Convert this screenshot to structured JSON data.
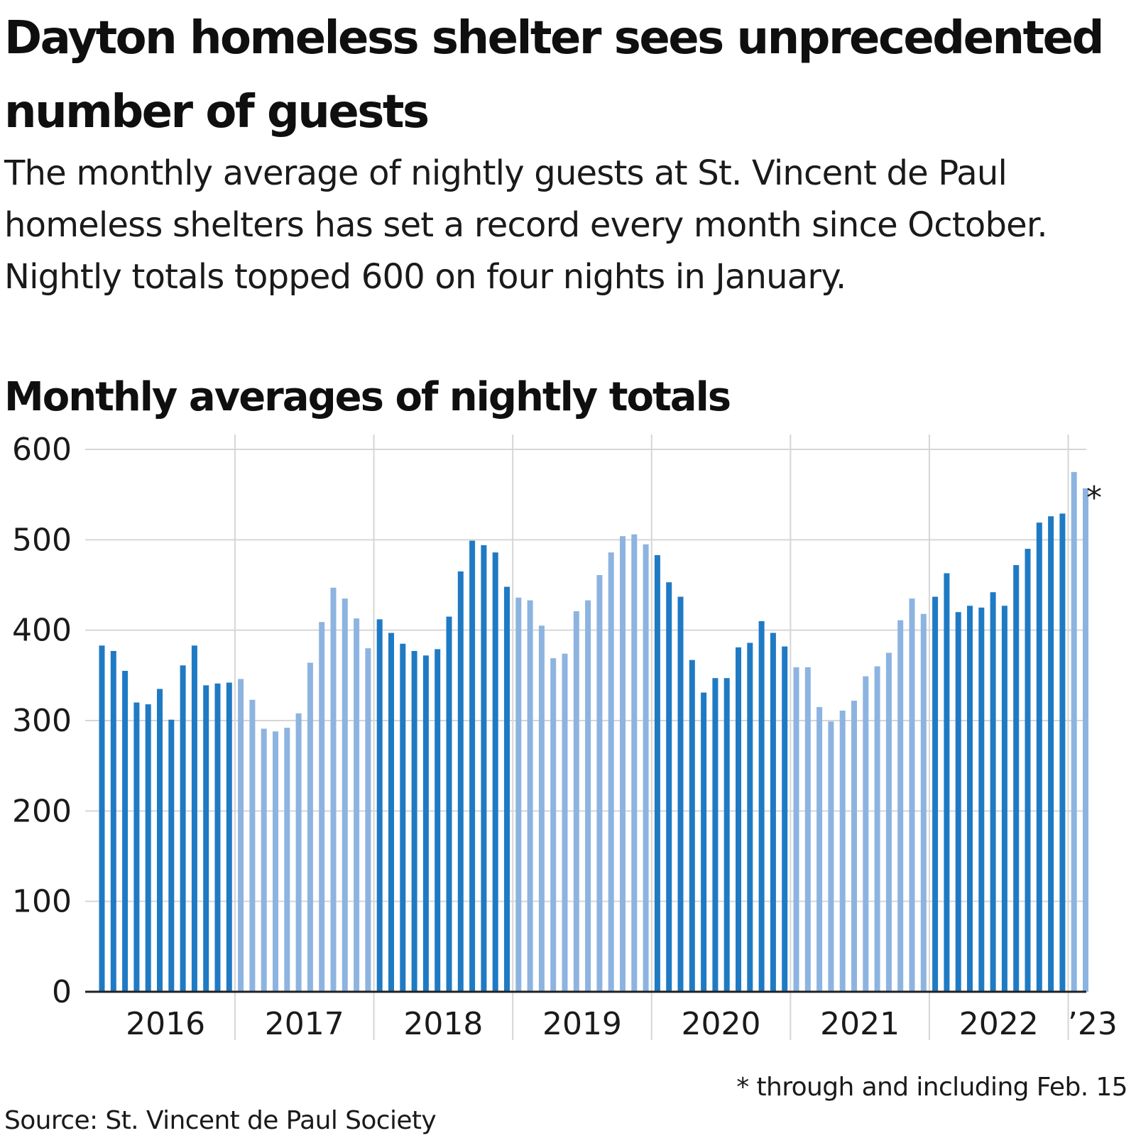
{
  "headline": "Dayton homeless shelter sees unprecedented number of guests",
  "subtitle": "The monthly average of nightly guests at St. Vincent de Paul homeless shelters has set a record every month since October. Nightly totals topped 600 on four nights in January.",
  "source": "Source: St. Vincent de Paul Society",
  "footnote": "* through and including Feb. 15",
  "colors": {
    "dark_bar": "#1f7ac4",
    "light_bar": "#8db4e0",
    "grid": "#d6d6d6",
    "axis": "#222222"
  },
  "chart_data": {
    "type": "bar",
    "title": "Monthly averages of nightly totals",
    "xlabel": "",
    "ylabel": "",
    "ylim": [
      0,
      600
    ],
    "yticks": [
      0,
      100,
      200,
      300,
      400,
      500,
      600
    ],
    "grid": true,
    "year_labels": [
      "2016",
      "2017",
      "2018",
      "2019",
      "2020",
      "2021",
      "2022",
      "’23"
    ],
    "annotation": {
      "text": "*",
      "category": "Feb 2023"
    },
    "categories": [
      "Jan 2016",
      "Feb 2016",
      "Mar 2016",
      "Apr 2016",
      "May 2016",
      "Jun 2016",
      "Jul 2016",
      "Aug 2016",
      "Sep 2016",
      "Oct 2016",
      "Nov 2016",
      "Dec 2016",
      "Jan 2017",
      "Feb 2017",
      "Mar 2017",
      "Apr 2017",
      "May 2017",
      "Jun 2017",
      "Jul 2017",
      "Aug 2017",
      "Sep 2017",
      "Oct 2017",
      "Nov 2017",
      "Dec 2017",
      "Jan 2018",
      "Feb 2018",
      "Mar 2018",
      "Apr 2018",
      "May 2018",
      "Jun 2018",
      "Jul 2018",
      "Aug 2018",
      "Sep 2018",
      "Oct 2018",
      "Nov 2018",
      "Dec 2018",
      "Jan 2019",
      "Feb 2019",
      "Mar 2019",
      "Apr 2019",
      "May 2019",
      "Jun 2019",
      "Jul 2019",
      "Aug 2019",
      "Sep 2019",
      "Oct 2019",
      "Nov 2019",
      "Dec 2019",
      "Jan 2020",
      "Feb 2020",
      "Mar 2020",
      "Apr 2020",
      "May 2020",
      "Jun 2020",
      "Jul 2020",
      "Aug 2020",
      "Sep 2020",
      "Oct 2020",
      "Nov 2020",
      "Dec 2020",
      "Jan 2021",
      "Feb 2021",
      "Mar 2021",
      "Apr 2021",
      "May 2021",
      "Jun 2021",
      "Jul 2021",
      "Aug 2021",
      "Sep 2021",
      "Oct 2021",
      "Nov 2021",
      "Dec 2021",
      "Jan 2022",
      "Feb 2022",
      "Mar 2022",
      "Apr 2022",
      "May 2022",
      "Jun 2022",
      "Jul 2022",
      "Aug 2022",
      "Sep 2022",
      "Oct 2022",
      "Nov 2022",
      "Dec 2022",
      "Jan 2023",
      "Feb 2023"
    ],
    "values": [
      383,
      377,
      355,
      320,
      318,
      335,
      301,
      361,
      383,
      339,
      341,
      342,
      346,
      323,
      291,
      288,
      292,
      308,
      364,
      409,
      447,
      435,
      413,
      380,
      412,
      397,
      385,
      377,
      372,
      379,
      415,
      465,
      499,
      494,
      486,
      448,
      436,
      433,
      405,
      369,
      374,
      421,
      433,
      461,
      486,
      504,
      506,
      495,
      483,
      453,
      437,
      367,
      331,
      347,
      347,
      381,
      386,
      410,
      397,
      382,
      359,
      359,
      315,
      299,
      311,
      322,
      349,
      360,
      375,
      411,
      435,
      418,
      437,
      463,
      420,
      427,
      425,
      442,
      427,
      472,
      490,
      519,
      526,
      529,
      575,
      557
    ]
  }
}
